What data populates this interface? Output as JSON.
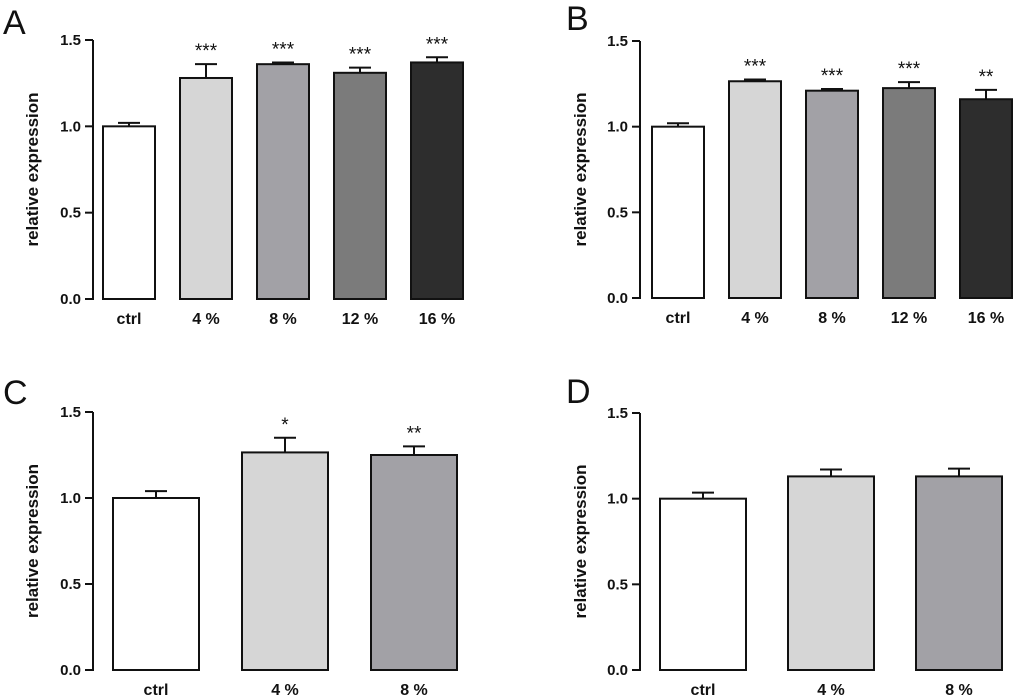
{
  "chart_data": [
    {
      "panel": "A",
      "type": "bar",
      "ylabel": "relative expression",
      "ylim": [
        0,
        1.5
      ],
      "yticks": [
        "0.0",
        "0.5",
        "1.0",
        "1.5"
      ],
      "categories": [
        "ctrl",
        "4 %",
        "8 %",
        "12 %",
        "16 %"
      ],
      "values": [
        1.0,
        1.28,
        1.36,
        1.31,
        1.37
      ],
      "errors": [
        0.02,
        0.08,
        0.01,
        0.03,
        0.03
      ],
      "significance": [
        "",
        "***",
        "***",
        "***",
        "***"
      ],
      "colors": [
        "#ffffff",
        "#d6d6d6",
        "#a2a1a6",
        "#7b7b7b",
        "#2d2d2d"
      ]
    },
    {
      "panel": "B",
      "type": "bar",
      "ylabel": "relative expression",
      "ylim": [
        0,
        1.5
      ],
      "yticks": [
        "0.0",
        "0.5",
        "1.0",
        "1.5"
      ],
      "categories": [
        "ctrl",
        "4 %",
        "8 %",
        "12 %",
        "16 %"
      ],
      "values": [
        1.0,
        1.265,
        1.21,
        1.225,
        1.16
      ],
      "errors": [
        0.02,
        0.01,
        0.01,
        0.035,
        0.055
      ],
      "significance": [
        "",
        "***",
        "***",
        "***",
        "**"
      ],
      "colors": [
        "#ffffff",
        "#d6d6d6",
        "#a2a1a6",
        "#7b7b7b",
        "#2d2d2d"
      ]
    },
    {
      "panel": "C",
      "type": "bar",
      "ylabel": "relative expression",
      "ylim": [
        0,
        1.5
      ],
      "yticks": [
        "0.0",
        "0.5",
        "1.0",
        "1.5"
      ],
      "categories": [
        "ctrl",
        "4 %",
        "8 %"
      ],
      "values": [
        1.0,
        1.265,
        1.25
      ],
      "errors": [
        0.04,
        0.085,
        0.05
      ],
      "significance": [
        "",
        "*",
        "**"
      ],
      "colors": [
        "#ffffff",
        "#d6d6d6",
        "#a2a1a6"
      ]
    },
    {
      "panel": "D",
      "type": "bar",
      "ylabel": "relative expression",
      "ylim": [
        0,
        1.5
      ],
      "yticks": [
        "0.0",
        "0.5",
        "1.0",
        "1.5"
      ],
      "categories": [
        "ctrl",
        "4 %",
        "8 %"
      ],
      "values": [
        1.0,
        1.13,
        1.13
      ],
      "errors": [
        0.035,
        0.04,
        0.045
      ],
      "significance": [
        "",
        "",
        ""
      ],
      "colors": [
        "#ffffff",
        "#d6d6d6",
        "#a2a1a6"
      ]
    }
  ]
}
